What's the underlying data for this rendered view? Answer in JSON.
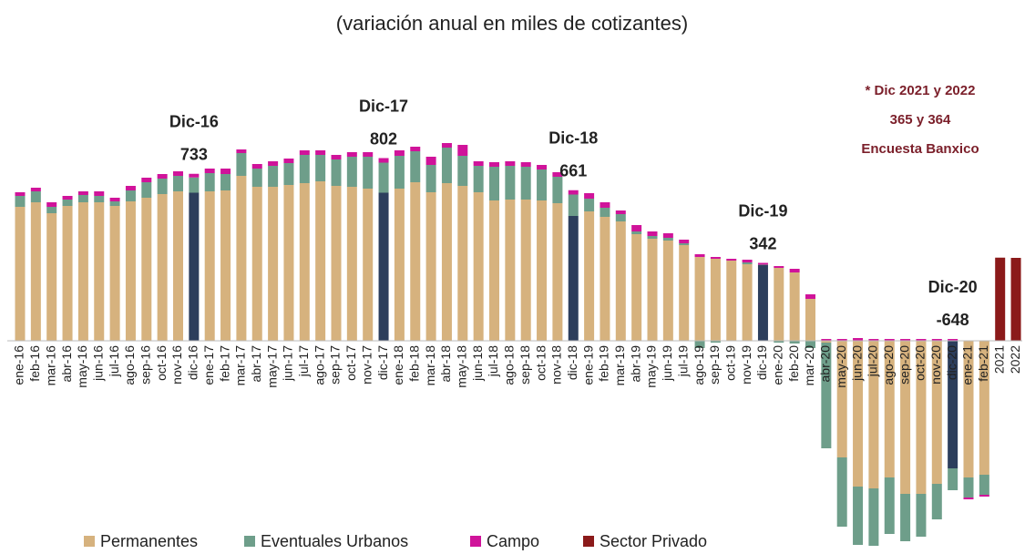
{
  "chart_data": {
    "type": "stacked_bar",
    "title": "(variación anual en miles de cotizantes)",
    "categories": [
      "ene-16",
      "feb-16",
      "mar-16",
      "abr-16",
      "may-16",
      "jun-16",
      "jul-16",
      "ago-16",
      "sep-16",
      "oct-16",
      "nov-16",
      "dic-16",
      "ene-17",
      "feb-17",
      "mar-17",
      "abr-17",
      "may-17",
      "jun-17",
      "jul-17",
      "ago-17",
      "sep-17",
      "oct-17",
      "nov-17",
      "dic-17",
      "ene-18",
      "feb-18",
      "mar-18",
      "abr-18",
      "may-18",
      "jun-18",
      "jul-18",
      "ago-18",
      "sep-18",
      "oct-18",
      "nov-18",
      "dic-18",
      "ene-19",
      "feb-19",
      "mar-19",
      "abr-19",
      "may-19",
      "jun-19",
      "jul-19",
      "ago-19",
      "sep-19",
      "oct-19",
      "nov-19",
      "dic-19",
      "ene-20",
      "feb-20",
      "mar-20",
      "abr-20",
      "may-20",
      "jun-20",
      "jul-20",
      "ago-20",
      "sep-20",
      "oct-20",
      "nov-20",
      "dic-20",
      "ene-21",
      "feb-21",
      "2021",
      "2022"
    ],
    "series": [
      {
        "name": "Permanentes",
        "color": "#d6b27e",
        "values": [
          588,
          608,
          560,
          592,
          608,
          608,
          592,
          612,
          628,
          644,
          656,
          650,
          656,
          660,
          724,
          676,
          676,
          684,
          692,
          700,
          680,
          676,
          668,
          650,
          668,
          696,
          652,
          692,
          680,
          652,
          616,
          620,
          620,
          616,
          604,
          548,
          568,
          544,
          524,
          468,
          448,
          440,
          420,
          368,
          360,
          352,
          336,
          332,
          320,
          300,
          184,
          -8,
          -512,
          -640,
          -648,
          -600,
          -672,
          -672,
          -628,
          -560,
          -600,
          -588,
          null,
          null
        ]
      },
      {
        "name": "Eventuales Urbanos",
        "color": "#6e9e8a",
        "values": [
          48,
          48,
          28,
          28,
          32,
          28,
          20,
          48,
          68,
          68,
          68,
          67,
          80,
          72,
          100,
          80,
          92,
          96,
          124,
          116,
          116,
          132,
          140,
          132,
          144,
          136,
          120,
          156,
          132,
          116,
          148,
          148,
          144,
          136,
          116,
          94,
          56,
          40,
          32,
          12,
          12,
          12,
          8,
          -32,
          -8,
          0,
          8,
          2,
          -8,
          -12,
          -32,
          -464,
          -304,
          -256,
          -252,
          -248,
          -208,
          -188,
          -156,
          -96,
          -88,
          -88,
          null,
          null
        ]
      },
      {
        "name": "Campo",
        "color": "#d0139a",
        "values": [
          16,
          16,
          20,
          16,
          16,
          20,
          16,
          20,
          20,
          20,
          20,
          16,
          20,
          24,
          16,
          20,
          20,
          20,
          20,
          20,
          20,
          20,
          20,
          20,
          24,
          20,
          36,
          20,
          48,
          20,
          20,
          20,
          20,
          20,
          20,
          19,
          24,
          24,
          16,
          28,
          20,
          20,
          16,
          12,
          8,
          8,
          12,
          8,
          8,
          16,
          20,
          8,
          8,
          12,
          8,
          8,
          8,
          8,
          8,
          8,
          -8,
          -8,
          null,
          null
        ]
      },
      {
        "name": "Sector Privado",
        "color": "#8b1a1a",
        "values": [
          null,
          null,
          null,
          null,
          null,
          null,
          null,
          null,
          null,
          null,
          null,
          null,
          null,
          null,
          null,
          null,
          null,
          null,
          null,
          null,
          null,
          null,
          null,
          null,
          null,
          null,
          null,
          null,
          null,
          null,
          null,
          null,
          null,
          null,
          null,
          null,
          null,
          null,
          null,
          null,
          null,
          null,
          null,
          null,
          null,
          null,
          null,
          null,
          null,
          null,
          null,
          null,
          null,
          null,
          null,
          null,
          null,
          null,
          null,
          null,
          null,
          null,
          365,
          364
        ]
      }
    ],
    "highlight": {
      "color": "#2c3e5c",
      "series": "Permanentes",
      "categories": [
        "dic-16",
        "dic-17",
        "dic-18",
        "dic-19",
        "dic-20"
      ]
    },
    "annotations": [
      {
        "category": "dic-16",
        "label": "Dic-16",
        "value": 733
      },
      {
        "category": "dic-17",
        "label": "Dic-17",
        "value": 802
      },
      {
        "category": "dic-18",
        "label": "Dic-18",
        "value": 661
      },
      {
        "category": "dic-19",
        "label": "Dic-19",
        "value": 342
      },
      {
        "category": "dic-20",
        "label": "Dic-20",
        "value": -648
      }
    ],
    "note": [
      "* Dic 2021 y 2022",
      "365 y 364",
      "Encuesta Banxico"
    ],
    "note_color": "#7b1f2a",
    "ylim": [
      -900,
      900
    ]
  }
}
